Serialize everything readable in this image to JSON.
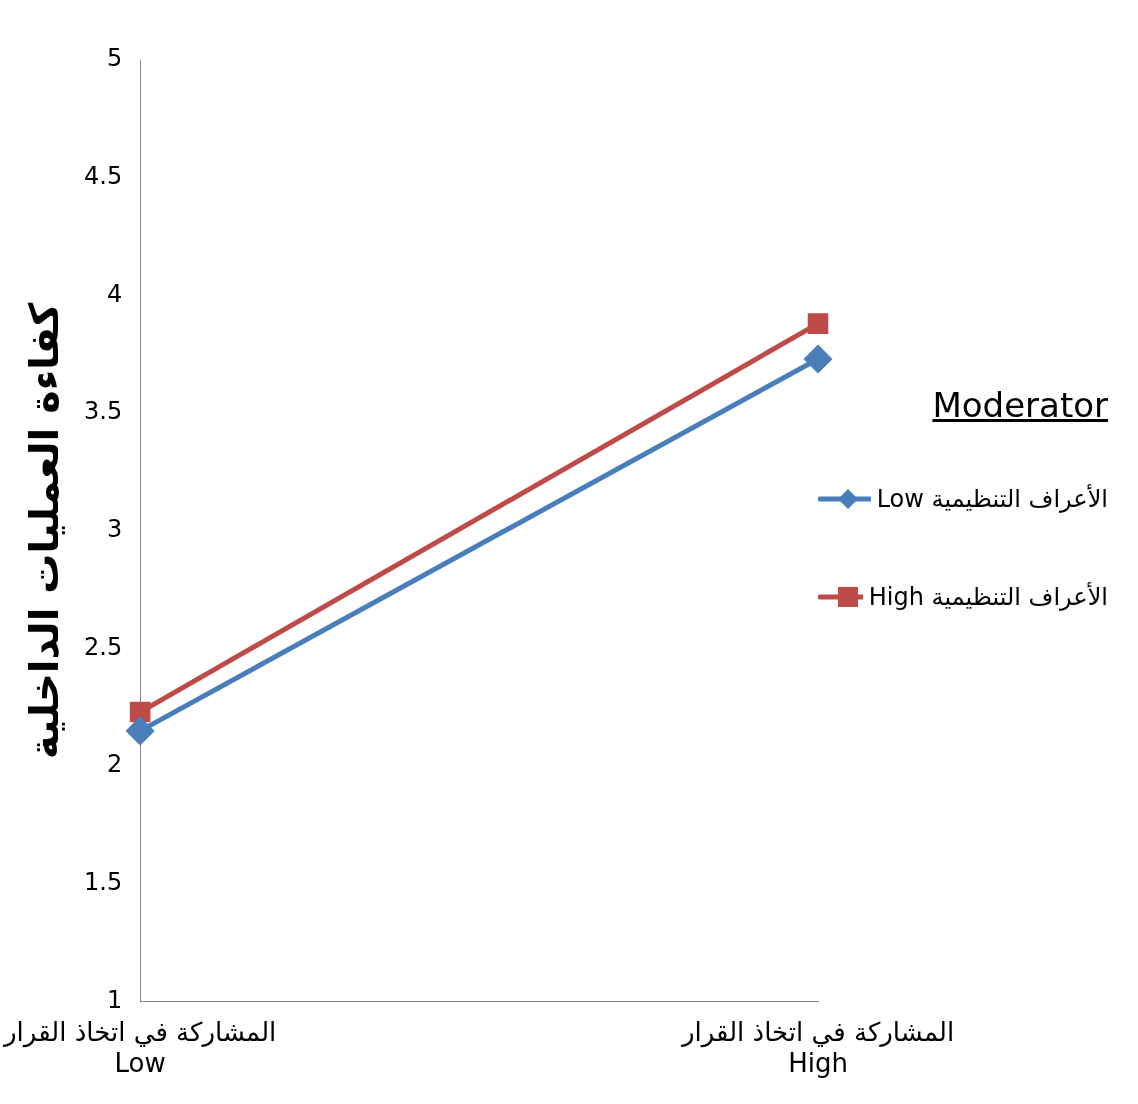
{
  "chart_data": {
    "type": "line",
    "ylabel": "كفاءة العمليات الداخلية",
    "legend_title": "Moderator",
    "legend": "right",
    "categories": [
      "المشاركة في اتخاذ القرار Low",
      "المشاركة في اتخاذ القرار High"
    ],
    "series": [
      {
        "name": "الأعراف التنظيمية Low",
        "color": "#4a7ebb",
        "marker": "diamond",
        "values": [
          2.15,
          3.73
        ]
      },
      {
        "name": "الأعراف التنظيمية High",
        "color": "#be4b48",
        "marker": "square",
        "values": [
          2.23,
          3.88
        ]
      }
    ],
    "ylim": [
      1,
      5
    ],
    "yticks": [
      1,
      1.5,
      2,
      2.5,
      3,
      3.5,
      4,
      4.5,
      5
    ],
    "grid": false
  }
}
